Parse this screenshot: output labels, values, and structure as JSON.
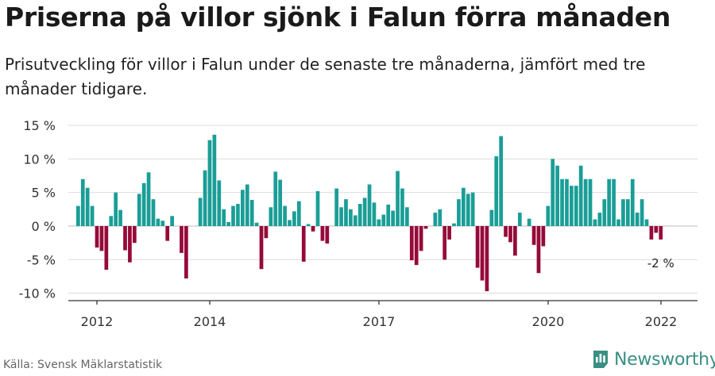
{
  "title": "Priserna på villor sjönk i Falun förra månaden",
  "subtitle": "Prisutveckling för villor i Falun under de senaste tre månaderna, jämfört med tre månader tidigare.",
  "source": "Källa: Svensk Mäklarstatistik",
  "brand": "Newsworthy",
  "colors": {
    "positive": "#1a9e97",
    "negative": "#950a3a",
    "grid": "#dddddd",
    "axis": "#333333",
    "brand": "#3a8f85"
  },
  "chart_data": {
    "type": "bar",
    "ylim": [
      -11,
      15
    ],
    "yticks": [
      -10,
      -5,
      0,
      5,
      10,
      15
    ],
    "ytick_labels": [
      "-10 %",
      "-5 %",
      "0 %",
      "5 %",
      "10 %",
      "15 %"
    ],
    "x_start": 2011.667,
    "x_step": 0.0833,
    "xticks": [
      2012,
      2014,
      2017,
      2020,
      2022
    ],
    "xtick_labels": [
      "2012",
      "2014",
      "2017",
      "2020",
      "2022"
    ],
    "annotation": "-2 %",
    "values": [
      3.0,
      7.0,
      5.7,
      3.0,
      -3.2,
      -3.7,
      -6.5,
      1.5,
      5.0,
      2.4,
      -3.6,
      -5.4,
      -2.5,
      4.8,
      6.4,
      8.0,
      4.0,
      1.1,
      0.8,
      -2.2,
      1.5,
      null,
      -4.0,
      -7.8,
      null,
      null,
      4.2,
      8.3,
      12.8,
      13.6,
      6.8,
      2.5,
      0.6,
      3.0,
      3.3,
      5.4,
      6.2,
      3.9,
      0.5,
      -6.4,
      -1.8,
      2.8,
      8.1,
      6.9,
      3.0,
      0.9,
      2.2,
      3.7,
      -5.3,
      0.3,
      -0.8,
      5.2,
      -2.2,
      -2.6,
      null,
      5.6,
      2.8,
      4.0,
      2.5,
      1.6,
      3.3,
      4.2,
      6.2,
      3.5,
      1.0,
      1.7,
      3.2,
      2.3,
      8.2,
      5.6,
      2.8,
      -5.1,
      -5.8,
      -3.7,
      -0.4,
      null,
      2.0,
      2.5,
      -5.0,
      -2.0,
      0.4,
      4.0,
      5.7,
      4.8,
      5.0,
      -6.2,
      -8.1,
      -9.7,
      2.4,
      10.4,
      13.4,
      -1.6,
      -2.4,
      -4.4,
      2.0,
      null,
      1.1,
      -2.8,
      -7.0,
      -3.0,
      3.0,
      10.0,
      9.0,
      7.0,
      7.0,
      6.0,
      6.0,
      9.0,
      7.0,
      7.0,
      1.0,
      2.0,
      4.0,
      7.0,
      7.0,
      1.0,
      4.0,
      4.0,
      7.0,
      2.0,
      4.0,
      1.0,
      -2.0,
      -1.0,
      -2.0
    ]
  }
}
